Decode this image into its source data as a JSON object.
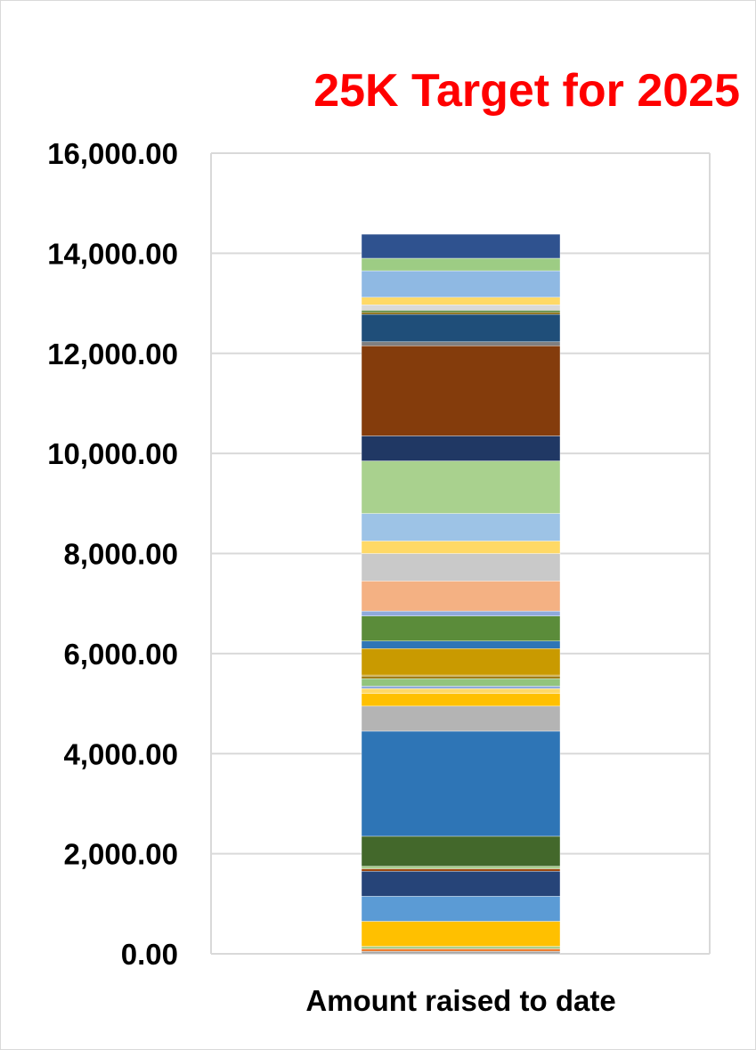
{
  "chart_data": {
    "type": "bar",
    "stacked": true,
    "title": "25K Target for 2025",
    "title_color": "#ff0000",
    "categories": [
      "Amount raised to date"
    ],
    "ylim": [
      0,
      16000
    ],
    "yticks": [
      0,
      2000,
      4000,
      6000,
      8000,
      10000,
      12000,
      14000,
      16000
    ],
    "ytick_labels": [
      "0.00",
      "2,000.00",
      "4,000.00",
      "6,000.00",
      "8,000.00",
      "10,000.00",
      "12,000.00",
      "14,000.00",
      "16,000.00"
    ],
    "grid": true,
    "legend": "none",
    "segments": [
      {
        "value": 50,
        "color": "#a5a5a5"
      },
      {
        "value": 50,
        "color": "#ed7d31"
      },
      {
        "value": 50,
        "color": "#a9d18e"
      },
      {
        "value": 500,
        "color": "#ffc000"
      },
      {
        "value": 500,
        "color": "#5b9bd5"
      },
      {
        "value": 500,
        "color": "#264478"
      },
      {
        "value": 50,
        "color": "#9e480e"
      },
      {
        "value": 50,
        "color": "#a9d18e"
      },
      {
        "value": 600,
        "color": "#43682b"
      },
      {
        "value": 2100,
        "color": "#2e75b6"
      },
      {
        "value": 500,
        "color": "#b4b4b4"
      },
      {
        "value": 250,
        "color": "#ffc000"
      },
      {
        "value": 100,
        "color": "#ffd966"
      },
      {
        "value": 50,
        "color": "#8faadc"
      },
      {
        "value": 150,
        "color": "#92c47d"
      },
      {
        "value": 50,
        "color": "#997300"
      },
      {
        "value": 20,
        "color": "#bf9000"
      },
      {
        "value": 530,
        "color": "#c99a00"
      },
      {
        "value": 150,
        "color": "#2e75b6"
      },
      {
        "value": 500,
        "color": "#5b8c3a"
      },
      {
        "value": 100,
        "color": "#8faadc"
      },
      {
        "value": 600,
        "color": "#f4b183"
      },
      {
        "value": 550,
        "color": "#c9c9c9"
      },
      {
        "value": 250,
        "color": "#ffd966"
      },
      {
        "value": 550,
        "color": "#9dc3e6"
      },
      {
        "value": 1050,
        "color": "#a9d18e"
      },
      {
        "value": 500,
        "color": "#203864"
      },
      {
        "value": 1800,
        "color": "#843c0c"
      },
      {
        "value": 80,
        "color": "#7f7f7f"
      },
      {
        "value": 550,
        "color": "#1f4e79"
      },
      {
        "value": 40,
        "color": "#7f6000"
      },
      {
        "value": 40,
        "color": "#548235"
      },
      {
        "value": 110,
        "color": "#d9d9d9"
      },
      {
        "value": 150,
        "color": "#ffd966"
      },
      {
        "value": 530,
        "color": "#8fb9e3"
      },
      {
        "value": 250,
        "color": "#9dcc84"
      },
      {
        "value": 480,
        "color": "#2f528f"
      }
    ]
  }
}
